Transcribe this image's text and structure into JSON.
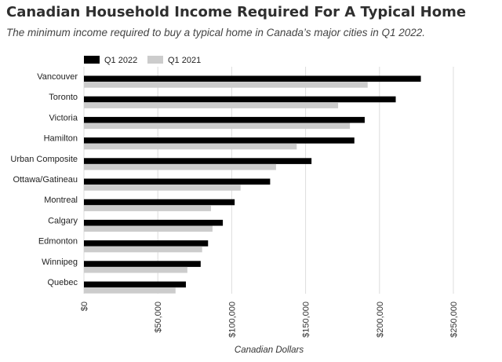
{
  "header": {
    "title": "Canadian Household Income Required For A Typical Home",
    "subtitle": "The minimum income required to buy a typical home in Canada’s major cities in Q1 2022."
  },
  "chart_data": {
    "type": "bar",
    "orientation": "horizontal",
    "title": "Canadian Household Income Required For A Typical Home",
    "subtitle": "The minimum income required to buy a typical home in Canada’s major cities in Q1 2022.",
    "xlabel": "Canadian Dollars",
    "ylabel": "",
    "xlim": [
      0,
      250000
    ],
    "x_ticks": [
      0,
      50000,
      100000,
      150000,
      200000,
      250000
    ],
    "x_tick_labels": [
      "$0",
      "$50,000",
      "$100,000",
      "$150,000",
      "$200,000",
      "$250,000"
    ],
    "grid": "vertical",
    "legend_position": "top-left",
    "categories": [
      "Vancouver",
      "Toronto",
      "Victoria",
      "Hamilton",
      "Urban Composite",
      "Ottawa/Gatineau",
      "Montreal",
      "Calgary",
      "Edmonton",
      "Winnipeg",
      "Quebec"
    ],
    "series": [
      {
        "name": "Q1 2022",
        "color": "#000000",
        "values": [
          228000,
          211000,
          190000,
          183000,
          154000,
          126000,
          102000,
          94000,
          84000,
          79000,
          69000
        ]
      },
      {
        "name": "Q1 2021",
        "color": "#cccccc",
        "values": [
          192000,
          172000,
          180000,
          144000,
          130000,
          106000,
          86000,
          87000,
          80000,
          70000,
          62000
        ]
      }
    ]
  }
}
